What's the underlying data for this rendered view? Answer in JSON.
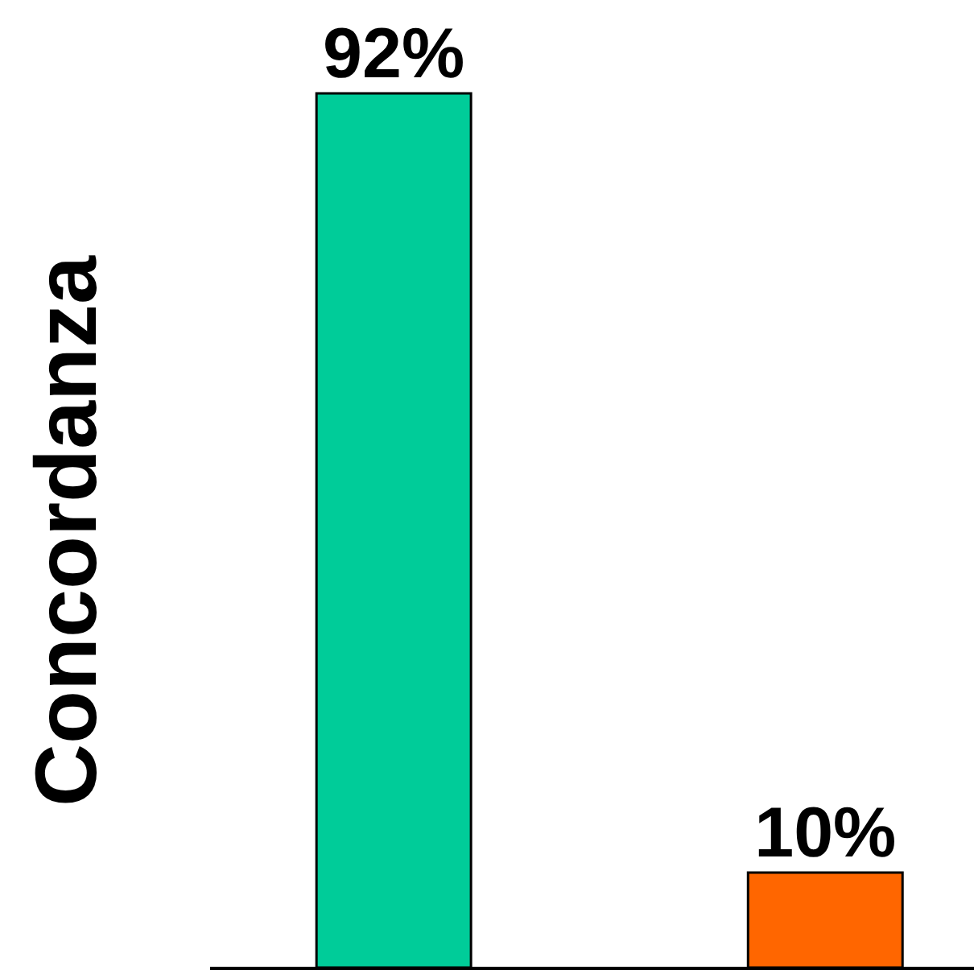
{
  "chart_data": {
    "type": "bar",
    "ylabel": "Concordanza",
    "categories": [
      null,
      null
    ],
    "values": [
      92,
      10
    ],
    "colors": [
      "#00cc99",
      "#ff6600"
    ],
    "value_labels": [
      "92%",
      "10%"
    ]
  }
}
